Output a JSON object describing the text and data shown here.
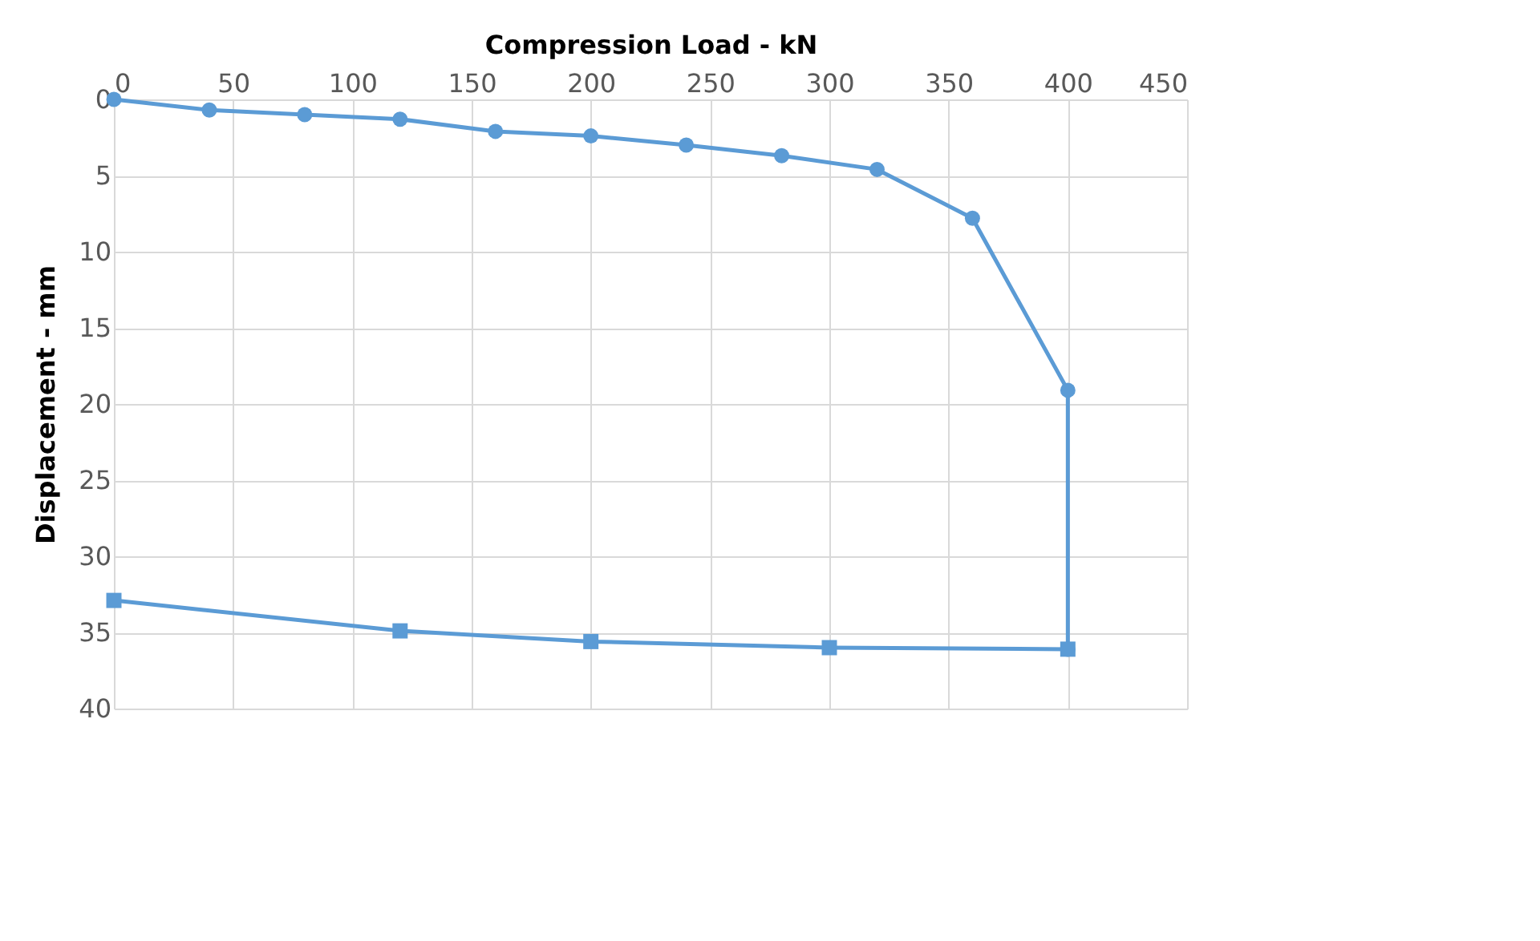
{
  "chart_data": {
    "type": "line",
    "xlabel": "Compression Load - kN",
    "ylabel": "Displacement - mm",
    "xlim": [
      0,
      450
    ],
    "xticks": [
      0,
      50,
      100,
      150,
      200,
      250,
      300,
      350,
      400,
      450
    ],
    "ylim": [
      40,
      0
    ],
    "yticks": [
      0,
      5,
      10,
      15,
      20,
      25,
      30,
      35,
      40
    ],
    "grid": true,
    "series": [
      {
        "color": "#5b9bd5",
        "marker": "circle",
        "x": [
          0,
          40,
          80,
          120,
          160,
          200,
          240,
          280,
          320,
          360,
          400,
          400
        ],
        "values": [
          0,
          0.7,
          1.0,
          1.3,
          2.1,
          2.4,
          3.0,
          3.7,
          4.6,
          7.8,
          19.1,
          36.1
        ]
      },
      {
        "color": "#5b9bd5",
        "marker": "square",
        "x": [
          400,
          300,
          200,
          120,
          0
        ],
        "values": [
          36.1,
          36.0,
          35.6,
          34.9,
          32.9
        ]
      }
    ]
  }
}
